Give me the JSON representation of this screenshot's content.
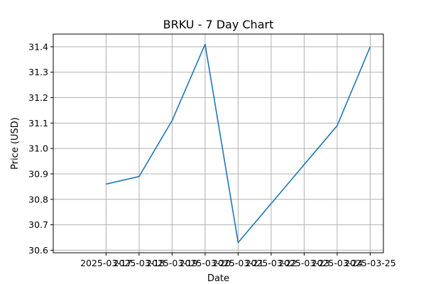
{
  "chart_data": {
    "type": "line",
    "title": "BRKU - 7 Day Chart",
    "xlabel": "Date",
    "ylabel": "Price (USD)",
    "x_tick_labels": [
      "2025-03-17",
      "2025-03-18",
      "2025-03-19",
      "2025-03-20",
      "2025-03-21",
      "2025-03-22",
      "2025-03-23",
      "2025-03-24",
      "2025-03-25"
    ],
    "y_ticks": [
      30.6,
      30.7,
      30.8,
      30.9,
      31.0,
      31.1,
      31.2,
      31.3,
      31.4
    ],
    "ylim": [
      30.59,
      31.45
    ],
    "xlim": [
      "2025-03-16",
      "2025-03-25"
    ],
    "grid": true,
    "series": [
      {
        "x": [
          "2025-03-17",
          "2025-03-18",
          "2025-03-19",
          "2025-03-20",
          "2025-03-21",
          "2025-03-24",
          "2025-03-25"
        ],
        "y": [
          30.86,
          30.89,
          31.11,
          31.41,
          30.63,
          31.09,
          31.4
        ],
        "color": "#1f77b4"
      }
    ]
  }
}
